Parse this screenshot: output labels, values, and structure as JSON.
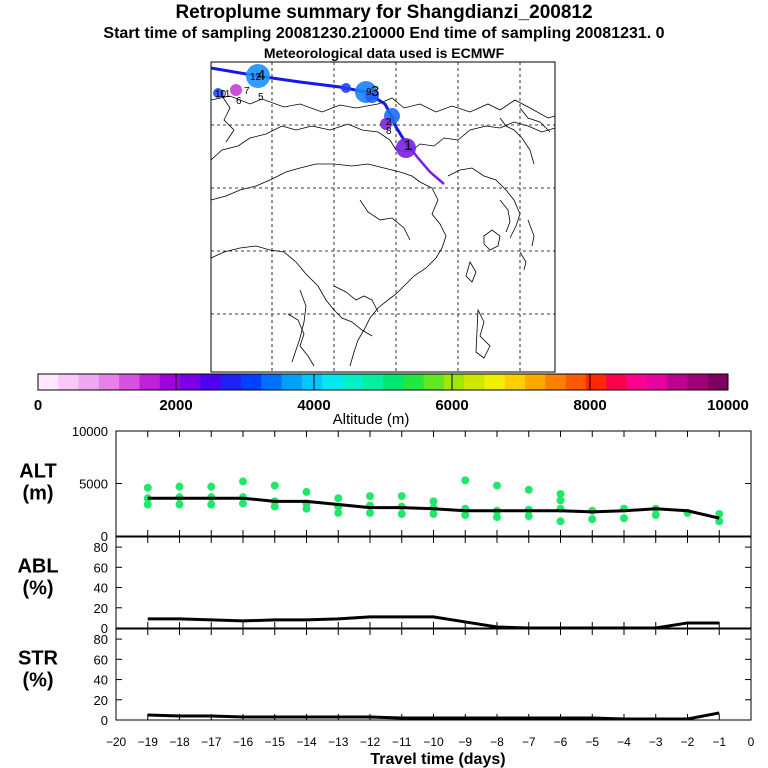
{
  "header": {
    "title": "Retroplume summary for Shangdianzi_200812",
    "sampling": "Start time of sampling 20081230.210000      End time of sampling 20081231.     0",
    "met": "Meteorological data used is ECMWF"
  },
  "map": {
    "trajectory_labels": [
      "1",
      "2",
      "3",
      "4",
      "5",
      "6",
      "7",
      "8",
      "9",
      "10",
      "11",
      "12"
    ],
    "line_colors": [
      "#1010ff",
      "#7a10d8"
    ]
  },
  "colorbar": {
    "label": "Altitude (m)",
    "ticks": [
      "0",
      "2000",
      "4000",
      "6000",
      "8000",
      "10000"
    ],
    "colors": [
      "#ffe8ff",
      "#f8c8f8",
      "#f0a8f0",
      "#e880e8",
      "#d850e0",
      "#c020d8",
      "#a000e0",
      "#7a00e8",
      "#5000f0",
      "#2020f8",
      "#0040ff",
      "#0070ff",
      "#00a0ff",
      "#00c8ff",
      "#00e8f0",
      "#00f0c8",
      "#00f0a0",
      "#00e870",
      "#20e840",
      "#60e820",
      "#a0e800",
      "#d0e800",
      "#f0f000",
      "#ffd000",
      "#ffa800",
      "#ff8000",
      "#ff5800",
      "#ff2800",
      "#ff0050",
      "#ff0090",
      "#e800a0",
      "#c00090",
      "#a00078",
      "#800060"
    ]
  },
  "chart_data": [
    {
      "type": "line",
      "name": "ALT",
      "ylabel": "ALT\n(m)",
      "ylim": [
        0,
        10000
      ],
      "yticks": [
        "10000",
        "5000",
        "0"
      ],
      "x": [
        -19,
        -18,
        -17,
        -16,
        -15,
        -14,
        -13,
        -12,
        -11,
        -10,
        -9,
        -8,
        -7,
        -6,
        -5,
        -4,
        -3,
        -2,
        -1
      ],
      "values": [
        3600,
        3600,
        3600,
        3600,
        3300,
        3300,
        3000,
        2700,
        2700,
        2600,
        2400,
        2400,
        2400,
        2400,
        2300,
        2400,
        2600,
        2400,
        1700
      ],
      "scatter_color": "#22e86a",
      "scatter": [
        [
          -19,
          3000
        ],
        [
          -19,
          3600
        ],
        [
          -19,
          4600
        ],
        [
          -18,
          3000
        ],
        [
          -18,
          3700
        ],
        [
          -18,
          4700
        ],
        [
          -17,
          3000
        ],
        [
          -17,
          3700
        ],
        [
          -17,
          4700
        ],
        [
          -16,
          3100
        ],
        [
          -16,
          3700
        ],
        [
          -16,
          5200
        ],
        [
          -15,
          2800
        ],
        [
          -15,
          3300
        ],
        [
          -15,
          4800
        ],
        [
          -14,
          2600
        ],
        [
          -14,
          3100
        ],
        [
          -14,
          4200
        ],
        [
          -13,
          2200
        ],
        [
          -13,
          2800
        ],
        [
          -13,
          3600
        ],
        [
          -12,
          2200
        ],
        [
          -12,
          2900
        ],
        [
          -12,
          3800
        ],
        [
          -11,
          2100
        ],
        [
          -11,
          2800
        ],
        [
          -11,
          3800
        ],
        [
          -10,
          2100
        ],
        [
          -10,
          2700
        ],
        [
          -10,
          3300
        ],
        [
          -9,
          2000
        ],
        [
          -9,
          2600
        ],
        [
          -9,
          5300
        ],
        [
          -8,
          1800
        ],
        [
          -8,
          2400
        ],
        [
          -8,
          4800
        ],
        [
          -7,
          1900
        ],
        [
          -7,
          2500
        ],
        [
          -7,
          4400
        ],
        [
          -6,
          1400
        ],
        [
          -6,
          2600
        ],
        [
          -6,
          3400
        ],
        [
          -6,
          4000
        ],
        [
          -5,
          1600
        ],
        [
          -5,
          2400
        ],
        [
          -4,
          1700
        ],
        [
          -4,
          2600
        ],
        [
          -3,
          2000
        ],
        [
          -3,
          2600
        ],
        [
          -2,
          2200
        ],
        [
          -1,
          1400
        ],
        [
          -1,
          2100
        ]
      ]
    },
    {
      "type": "line",
      "name": "ABL",
      "ylabel": "ABL\n(%)",
      "ylim": [
        0,
        90
      ],
      "yticks": [
        "80",
        "60",
        "40",
        "20",
        "0"
      ],
      "x": [
        -19,
        -18,
        -17,
        -16,
        -15,
        -14,
        -13,
        -12,
        -11,
        -10,
        -9,
        -8,
        -7,
        -6,
        -5,
        -4,
        -3,
        -2,
        -1
      ],
      "values": [
        9,
        9,
        8,
        7,
        8,
        8,
        9,
        11,
        11,
        11,
        6,
        1,
        0,
        0,
        0,
        0,
        0,
        5,
        5
      ]
    },
    {
      "type": "line",
      "name": "STR",
      "ylabel": "STR\n(%)",
      "ylim": [
        0,
        90
      ],
      "yticks": [
        "80",
        "60",
        "40",
        "20",
        "0"
      ],
      "x": [
        -19,
        -18,
        -17,
        -16,
        -15,
        -14,
        -13,
        -12,
        -11,
        -10,
        -9,
        -8,
        -7,
        -6,
        -5,
        -4,
        -3,
        -2,
        -1
      ],
      "values": [
        5,
        4,
        4,
        3,
        3,
        3,
        3,
        3,
        2,
        2,
        2,
        2,
        2,
        2,
        2,
        1,
        1,
        1,
        7
      ]
    }
  ],
  "x_axis": {
    "label": "Travel time (days)",
    "ticks": [
      "−20",
      "−19",
      "−18",
      "−17",
      "−16",
      "−15",
      "−14",
      "−13",
      "−12",
      "−11",
      "−10",
      "−9",
      "−8",
      "−7",
      "−6",
      "−5",
      "−4",
      "−3",
      "−2",
      "−1",
      "0"
    ]
  }
}
